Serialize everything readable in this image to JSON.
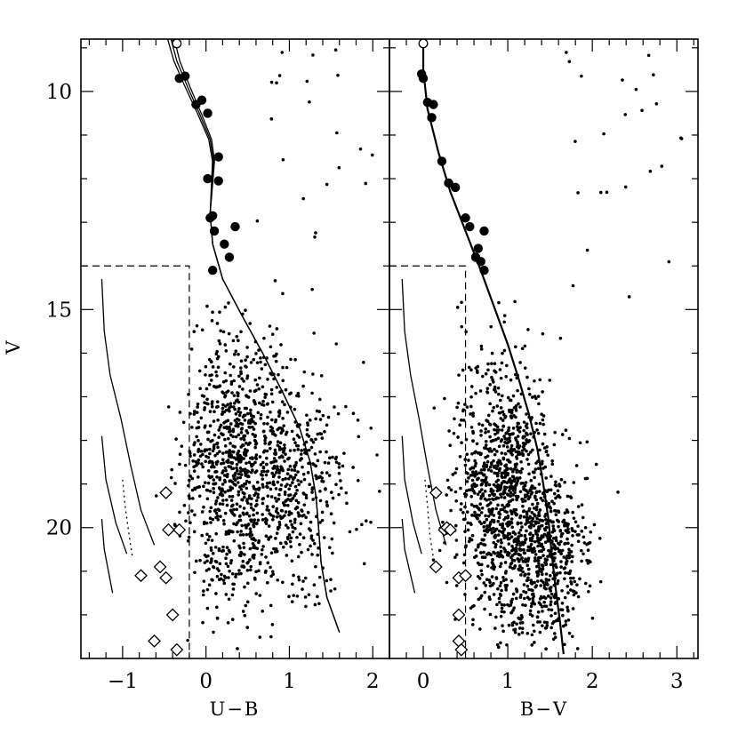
{
  "chart_data": [
    {
      "type": "scatter",
      "panel": "left",
      "xlabel": "U−B",
      "ylabel": "V",
      "xlim": [
        -1.5,
        2.2
      ],
      "ylim": [
        23.0,
        8.8
      ],
      "y_inverted": true,
      "xticks": [
        -1,
        0,
        1,
        2
      ],
      "xtick_labels": [
        "−1",
        "0",
        "1",
        "2"
      ],
      "yticks": [
        10,
        15,
        20
      ],
      "ytick_labels": [
        "10",
        "15",
        "20"
      ],
      "bright_members_open": [
        {
          "x": -0.35,
          "y": 8.9
        }
      ],
      "bright_members_filled": [
        {
          "x": -0.32,
          "y": 9.7
        },
        {
          "x": -0.25,
          "y": 9.65
        },
        {
          "x": -0.12,
          "y": 10.3
        },
        {
          "x": -0.05,
          "y": 10.2
        },
        {
          "x": 0.02,
          "y": 10.5
        },
        {
          "x": 0.15,
          "y": 11.5
        },
        {
          "x": 0.02,
          "y": 12.0
        },
        {
          "x": 0.15,
          "y": 12.05
        },
        {
          "x": 0.05,
          "y": 12.9
        },
        {
          "x": 0.08,
          "y": 12.85
        },
        {
          "x": 0.1,
          "y": 13.2
        },
        {
          "x": 0.35,
          "y": 13.1
        },
        {
          "x": 0.22,
          "y": 13.5
        },
        {
          "x": 0.28,
          "y": 13.8
        },
        {
          "x": 0.08,
          "y": 14.1
        }
      ],
      "diamonds": [
        {
          "x": -0.48,
          "y": 19.2
        },
        {
          "x": -0.45,
          "y": 20.05
        },
        {
          "x": -0.32,
          "y": 20.05
        },
        {
          "x": -0.55,
          "y": 20.9
        },
        {
          "x": -0.48,
          "y": 21.15
        },
        {
          "x": -0.78,
          "y": 21.1
        },
        {
          "x": -0.4,
          "y": 22.0
        },
        {
          "x": -0.62,
          "y": 22.6
        },
        {
          "x": -0.35,
          "y": 22.8
        }
      ],
      "isochrone_zams": [
        [
          -0.42,
          8.8
        ],
        [
          -0.35,
          9.3
        ],
        [
          -0.22,
          9.9
        ],
        [
          -0.08,
          10.5
        ],
        [
          0.05,
          11.1
        ],
        [
          0.09,
          11.6
        ],
        [
          0.07,
          12.2
        ],
        [
          0.05,
          12.8
        ],
        [
          0.08,
          13.5
        ],
        [
          0.2,
          14.3
        ],
        [
          0.42,
          15.1
        ],
        [
          0.68,
          16.0
        ],
        [
          0.92,
          16.9
        ],
        [
          1.12,
          17.7
        ],
        [
          1.25,
          18.5
        ],
        [
          1.32,
          19.3
        ],
        [
          1.35,
          20.0
        ],
        [
          1.38,
          20.8
        ],
        [
          1.45,
          21.6
        ],
        [
          1.6,
          22.4
        ]
      ],
      "dashed_box": {
        "x": -0.2,
        "y_top": 14.0
      },
      "sequences": [
        [
          [
            -1.25,
            14.3
          ],
          [
            -1.22,
            15.5
          ],
          [
            -1.15,
            16.5
          ],
          [
            -1.02,
            17.5
          ],
          [
            -0.9,
            18.6
          ],
          [
            -0.78,
            19.6
          ],
          [
            -0.62,
            20.4
          ]
        ],
        [
          [
            -1.25,
            17.9
          ],
          [
            -1.2,
            18.9
          ],
          [
            -1.08,
            19.9
          ],
          [
            -0.95,
            20.6
          ]
        ],
        [
          [
            -1.25,
            19.8
          ],
          [
            -1.22,
            20.5
          ],
          [
            -1.12,
            21.5
          ]
        ]
      ],
      "dotted_sequence": [
        [
          -1.0,
          18.9
        ],
        [
          -0.97,
          19.5
        ],
        [
          -0.92,
          20.2
        ],
        [
          -0.88,
          20.7
        ]
      ],
      "field_stars": {
        "seed": 11,
        "count": 1300,
        "clouds": [
          {
            "cx": 0.3,
            "cy": 18.6,
            "sx": 0.28,
            "sy": 1.6,
            "w": 0.6
          },
          {
            "cx": 1.0,
            "cy": 19.0,
            "sx": 0.35,
            "sy": 1.3,
            "w": 0.4
          }
        ]
      }
    },
    {
      "type": "scatter",
      "panel": "right",
      "xlabel": "B−V",
      "ylabel": "",
      "xlim": [
        -0.4,
        3.25
      ],
      "ylim": [
        23.0,
        8.8
      ],
      "y_inverted": true,
      "xticks": [
        0,
        1,
        2,
        3
      ],
      "xtick_labels": [
        "0",
        "1",
        "2",
        "3"
      ],
      "bright_members_open": [
        {
          "x": 0.0,
          "y": 8.9
        }
      ],
      "bright_members_filled": [
        {
          "x": -0.02,
          "y": 9.6
        },
        {
          "x": 0.0,
          "y": 9.7
        },
        {
          "x": 0.05,
          "y": 10.25
        },
        {
          "x": 0.12,
          "y": 10.3
        },
        {
          "x": 0.1,
          "y": 10.6
        },
        {
          "x": 0.22,
          "y": 11.6
        },
        {
          "x": 0.3,
          "y": 12.1
        },
        {
          "x": 0.38,
          "y": 12.2
        },
        {
          "x": 0.5,
          "y": 12.9
        },
        {
          "x": 0.55,
          "y": 13.1
        },
        {
          "x": 0.72,
          "y": 13.2
        },
        {
          "x": 0.65,
          "y": 13.6
        },
        {
          "x": 0.68,
          "y": 13.9
        },
        {
          "x": 0.72,
          "y": 14.1
        },
        {
          "x": 0.62,
          "y": 13.8
        }
      ],
      "diamonds": [
        {
          "x": 0.15,
          "y": 19.2
        },
        {
          "x": 0.25,
          "y": 20.05
        },
        {
          "x": 0.28,
          "y": 20.0
        },
        {
          "x": 0.32,
          "y": 20.05
        },
        {
          "x": 0.15,
          "y": 20.9
        },
        {
          "x": 0.42,
          "y": 21.15
        },
        {
          "x": 0.5,
          "y": 21.1
        },
        {
          "x": 0.42,
          "y": 22.0
        },
        {
          "x": 0.42,
          "y": 22.6
        },
        {
          "x": 0.45,
          "y": 22.8
        }
      ],
      "isochrone_zams": [
        [
          0.0,
          8.8
        ],
        [
          0.0,
          9.5
        ],
        [
          0.05,
          10.4
        ],
        [
          0.18,
          11.4
        ],
        [
          0.32,
          12.3
        ],
        [
          0.5,
          13.2
        ],
        [
          0.68,
          14.1
        ],
        [
          0.85,
          15.0
        ],
        [
          1.0,
          15.8
        ],
        [
          1.13,
          16.6
        ],
        [
          1.25,
          17.4
        ],
        [
          1.35,
          18.2
        ],
        [
          1.42,
          19.0
        ],
        [
          1.48,
          19.8
        ],
        [
          1.52,
          20.6
        ],
        [
          1.56,
          21.3
        ],
        [
          1.62,
          22.2
        ],
        [
          1.66,
          22.9
        ]
      ],
      "dashed_box": {
        "x": 0.5,
        "y_top": 14.0
      },
      "sequences": [
        [
          [
            -0.25,
            14.3
          ],
          [
            -0.22,
            15.5
          ],
          [
            -0.15,
            16.5
          ],
          [
            -0.05,
            17.5
          ],
          [
            0.05,
            18.6
          ],
          [
            0.15,
            19.6
          ],
          [
            0.27,
            20.4
          ]
        ],
        [
          [
            -0.25,
            17.9
          ],
          [
            -0.22,
            18.9
          ],
          [
            -0.12,
            19.9
          ],
          [
            -0.02,
            20.6
          ]
        ],
        [
          [
            -0.25,
            19.8
          ],
          [
            -0.22,
            20.5
          ],
          [
            -0.1,
            21.5
          ]
        ]
      ],
      "dotted_sequence": [
        [
          0.02,
          18.9
        ],
        [
          0.05,
          19.5
        ],
        [
          0.08,
          20.2
        ],
        [
          0.12,
          20.7
        ]
      ],
      "field_stars": {
        "seed": 23,
        "count": 1500,
        "clouds": [
          {
            "cx": 0.95,
            "cy": 19.2,
            "sx": 0.3,
            "sy": 1.5,
            "w": 0.65
          },
          {
            "cx": 1.45,
            "cy": 20.6,
            "sx": 0.25,
            "sy": 1.0,
            "w": 0.35
          }
        ]
      }
    }
  ]
}
